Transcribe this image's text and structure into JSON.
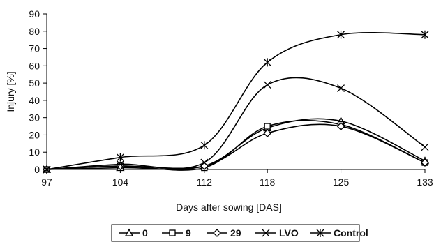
{
  "chart_data": {
    "type": "line",
    "xlabel": "Days after sowing [DAS]",
    "ylabel": "Injury [%]",
    "x": [
      97,
      104,
      112,
      118,
      125,
      133
    ],
    "x_tick_labels": [
      "97",
      "104",
      "112",
      "118",
      "125",
      "133"
    ],
    "xlim": [
      97,
      133
    ],
    "ylim": [
      0,
      90
    ],
    "y_ticks": [
      0,
      10,
      20,
      30,
      40,
      50,
      60,
      70,
      80,
      90
    ],
    "y_tick_labels": [
      "0",
      "10",
      "20",
      "30",
      "40",
      "50",
      "60",
      "70",
      "80",
      "90"
    ],
    "grid": false,
    "legend_position": "bottom",
    "series": [
      {
        "name": "0",
        "marker": "triangle",
        "values": [
          0,
          1,
          2,
          24,
          28,
          5
        ]
      },
      {
        "name": "9",
        "marker": "square",
        "values": [
          0,
          2,
          1,
          25,
          26,
          4
        ]
      },
      {
        "name": "29",
        "marker": "diamond",
        "values": [
          0,
          2,
          2,
          21,
          25,
          4
        ]
      },
      {
        "name": "LVO",
        "marker": "x",
        "values": [
          0,
          3,
          4,
          49,
          47,
          13
        ]
      },
      {
        "name": "Control",
        "marker": "star",
        "values": [
          0,
          7,
          14,
          62,
          78,
          78
        ]
      }
    ]
  }
}
